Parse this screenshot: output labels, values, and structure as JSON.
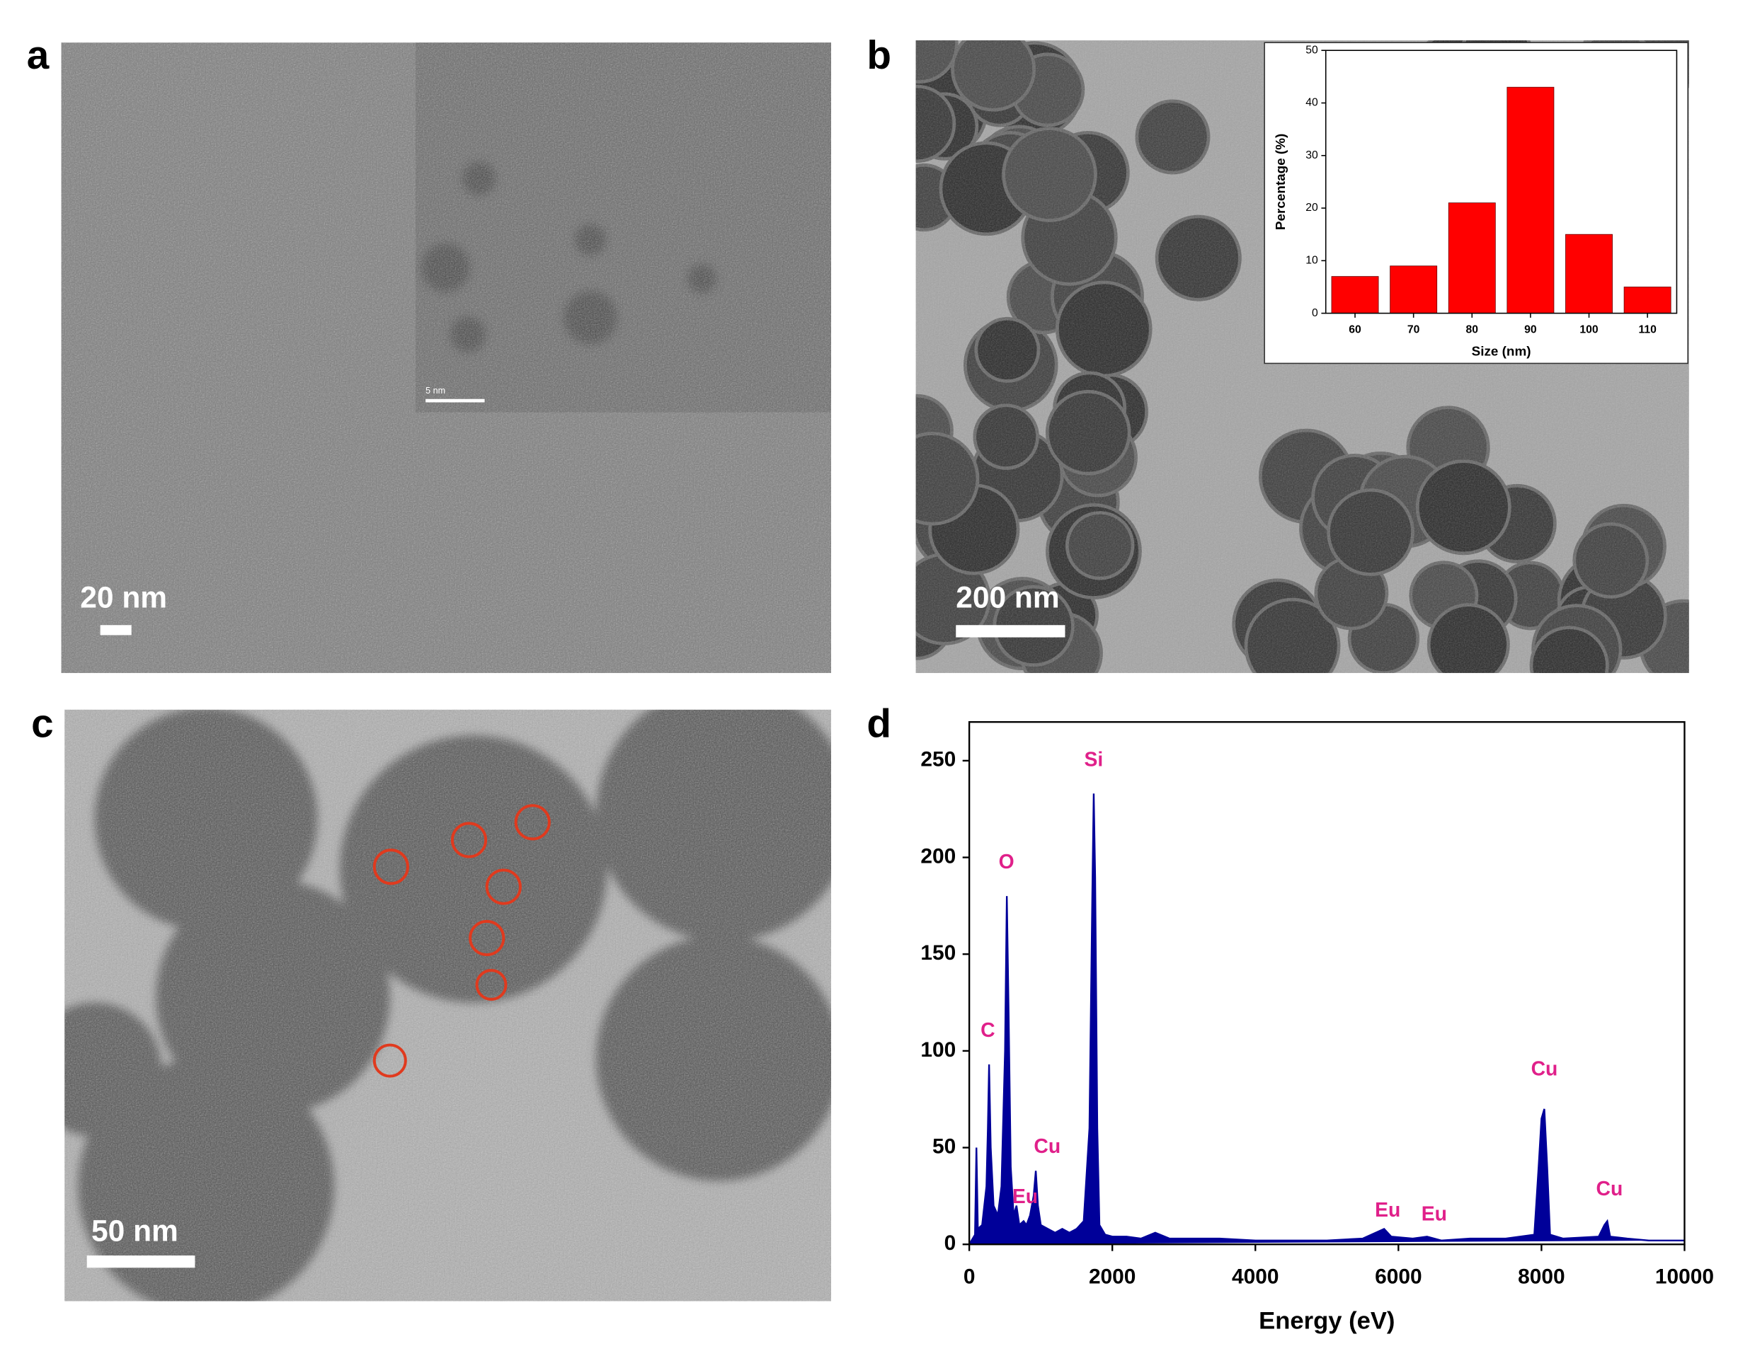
{
  "panels": [
    {
      "label": "a",
      "scale_bar": "20 nm",
      "inset_scale_bar": "5 nm"
    },
    {
      "label": "b",
      "scale_bar": "200 nm"
    },
    {
      "label": "c",
      "scale_bar": "50 nm"
    },
    {
      "label": "d"
    }
  ],
  "chart_data": [
    {
      "type": "bar",
      "x_label": "Size (nm)",
      "y_label": "Percentage (%)",
      "categories": [
        "60",
        "70",
        "80",
        "90",
        "100",
        "110"
      ],
      "values": [
        7,
        9,
        21,
        43,
        15,
        5
      ],
      "color": "#ff0000",
      "ylim": [
        0,
        50
      ],
      "yticks": [
        0,
        10,
        20,
        30,
        40,
        50
      ]
    },
    {
      "type": "line",
      "x_label": "Energy (eV)",
      "color": "#000099",
      "label_color": "#e0208a",
      "x": [
        0,
        80,
        100,
        120,
        180,
        240,
        260,
        277,
        300,
        340,
        400,
        450,
        500,
        525,
        550,
        580,
        620,
        660,
        700,
        760,
        800,
        850,
        900,
        930,
        960,
        1000,
        1100,
        1200,
        1300,
        1400,
        1500,
        1600,
        1680,
        1720,
        1740,
        1760,
        1790,
        1820,
        1900,
        2000,
        2200,
        2400,
        2600,
        2800,
        3000,
        3500,
        4000,
        4500,
        5000,
        5500,
        5800,
        5900,
        6200,
        6400,
        6600,
        7000,
        7500,
        7900,
        7960,
        8000,
        8040,
        8080,
        8120,
        8300,
        8800,
        8880,
        8920,
        8960,
        9200,
        9500,
        10000
      ],
      "values": [
        0,
        5,
        50,
        8,
        10,
        30,
        60,
        93,
        50,
        20,
        15,
        30,
        100,
        180,
        120,
        40,
        15,
        20,
        10,
        12,
        10,
        15,
        25,
        38,
        20,
        10,
        8,
        6,
        8,
        6,
        8,
        12,
        60,
        180,
        233,
        190,
        60,
        10,
        5,
        4,
        4,
        3,
        6,
        3,
        3,
        3,
        2,
        2,
        2,
        3,
        8,
        4,
        3,
        4,
        2,
        3,
        3,
        5,
        40,
        65,
        70,
        40,
        5,
        3,
        4,
        10,
        12,
        4,
        3,
        2,
        2
      ],
      "xlim": [
        0,
        10000
      ],
      "ylim": [
        0,
        270
      ],
      "xticks": [
        0,
        2000,
        4000,
        6000,
        8000,
        10000
      ],
      "yticks": [
        0,
        50,
        100,
        150,
        200,
        250
      ],
      "annotations": [
        {
          "text": "C",
          "x": 260,
          "y": 110
        },
        {
          "text": "O",
          "x": 520,
          "y": 197
        },
        {
          "text": "Si",
          "x": 1740,
          "y": 250
        },
        {
          "text": "Cu",
          "x": 1090,
          "y": 50
        },
        {
          "text": "Eu",
          "x": 780,
          "y": 24
        },
        {
          "text": "Eu",
          "x": 5850,
          "y": 17
        },
        {
          "text": "Eu",
          "x": 6500,
          "y": 15
        },
        {
          "text": "Cu",
          "x": 8040,
          "y": 90
        },
        {
          "text": "Cu",
          "x": 8950,
          "y": 28
        }
      ]
    }
  ]
}
